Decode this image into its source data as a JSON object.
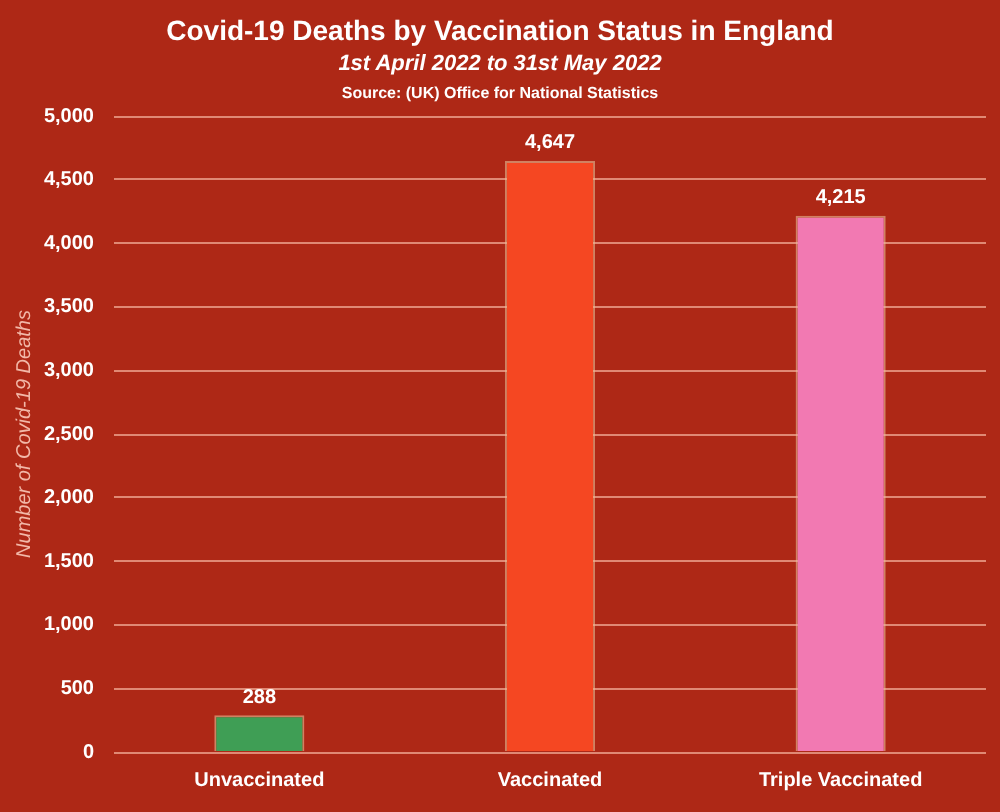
{
  "chart_data": {
    "type": "bar",
    "title": "Covid-19 Deaths by Vaccination Status in England",
    "subtitle": "1st April 2022 to 31st May 2022",
    "annotations": [
      "Source: (UK) Office for National Statistics"
    ],
    "ylabel": "Number of Covid-19 Deaths",
    "categories": [
      "Unvaccinated",
      "Vaccinated",
      "Triple Vaccinated"
    ],
    "values": [
      288,
      4647,
      4215
    ],
    "colors": [
      "#3f9e55",
      "#f54722",
      "#f279b2"
    ],
    "value_labels": [
      "288",
      "4,647",
      "4,215"
    ],
    "ylim": [
      0,
      5000
    ],
    "yticks": [
      {
        "value": 0,
        "label": "0"
      },
      {
        "value": 500,
        "label": "500"
      },
      {
        "value": 1000,
        "label": "1,000"
      },
      {
        "value": 1500,
        "label": "1,500"
      },
      {
        "value": 2000,
        "label": "2,000"
      },
      {
        "value": 2500,
        "label": "2,500"
      },
      {
        "value": 3000,
        "label": "3,000"
      },
      {
        "value": 3500,
        "label": "3,500"
      },
      {
        "value": 4000,
        "label": "4,000"
      },
      {
        "value": 4500,
        "label": "4,500"
      },
      {
        "value": 5000,
        "label": "5,000"
      }
    ],
    "grid": "y"
  }
}
